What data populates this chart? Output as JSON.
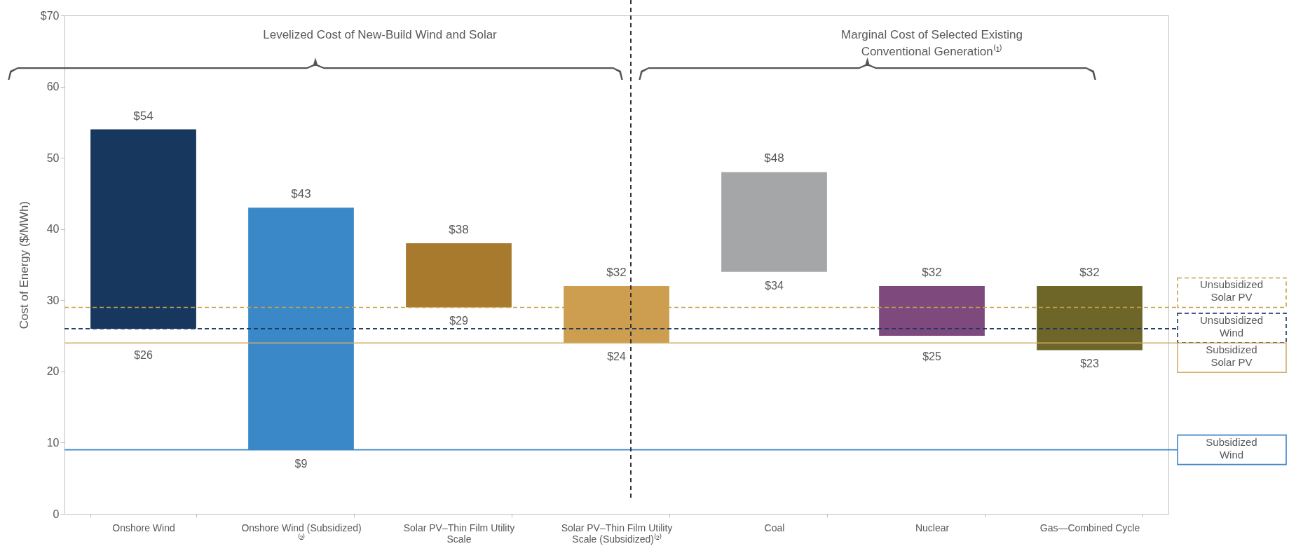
{
  "chart_data": {
    "type": "bar",
    "ylabel": "Cost of Energy ($/MWh)",
    "categories": [
      "Onshore Wind",
      "Onshore Wind (Subsidized) ⁽²⁾",
      "Solar PV–Thin Film Utility Scale",
      "Solar PV–Thin Film Utility Scale (Subsidized)⁽²⁾",
      "Coal",
      "Nuclear",
      "Gas—Combined Cycle"
    ],
    "base": [
      26,
      9,
      29,
      24,
      34,
      25,
      23
    ],
    "values": [
      28,
      34,
      9,
      8,
      14,
      7,
      9
    ],
    "colors": [
      "#17375e",
      "#3b88c9",
      "#a87a2e",
      "#cd9e4f",
      "#a5a6a8",
      "#7e4a7e",
      "#6e6529"
    ],
    "value_labels": [
      "$54",
      "$43",
      "$38",
      "$32",
      "$48",
      "$32",
      "$32"
    ],
    "ylim": [
      0,
      70
    ],
    "yticks": [
      0,
      10,
      20,
      30,
      40,
      50,
      60,
      {
        "value": 70,
        "label": "$70"
      }
    ],
    "ref_lines": [
      {
        "axis": "y",
        "value": 29,
        "label": "Unsubsidized Solar PV",
        "color": "#c9a04a",
        "line_style": "dashed"
      },
      {
        "axis": "y",
        "value": 26,
        "label": "Unsubsidized Wind",
        "color": "#1f3864",
        "line_style": "dashed"
      },
      {
        "axis": "y",
        "value": 24,
        "label": "Subsidized Solar PV",
        "color": "#d2ac66",
        "line_style": "solid"
      },
      {
        "axis": "y",
        "value": 9,
        "label": "Subsidized Wind",
        "color": "#3d85c6",
        "line_style": "solid"
      }
    ],
    "annotations": [
      "Levelized Cost of New-Build Wind and Solar",
      "Marginal Cost of Selected Existing Conventional Generation⁽¹⁾",
      {
        "text": "$26",
        "x": "Onshore Wind",
        "y": 26
      },
      {
        "text": "$9",
        "x": "Onshore Wind (Subsidized) ⁽²⁾",
        "y": 9
      },
      {
        "text": "$29",
        "x": "Solar PV–Thin Film Utility Scale",
        "y": 29
      },
      {
        "text": "$24",
        "x": "Solar PV–Thin Film Utility Scale (Subsidized)⁽²⁾",
        "y": 24
      },
      {
        "text": "$34",
        "x": "Coal",
        "y": 34
      },
      {
        "text": "$25",
        "x": "Nuclear",
        "y": 25
      },
      {
        "text": "$23",
        "x": "Gas—Combined Cycle",
        "y": 23
      }
    ]
  }
}
